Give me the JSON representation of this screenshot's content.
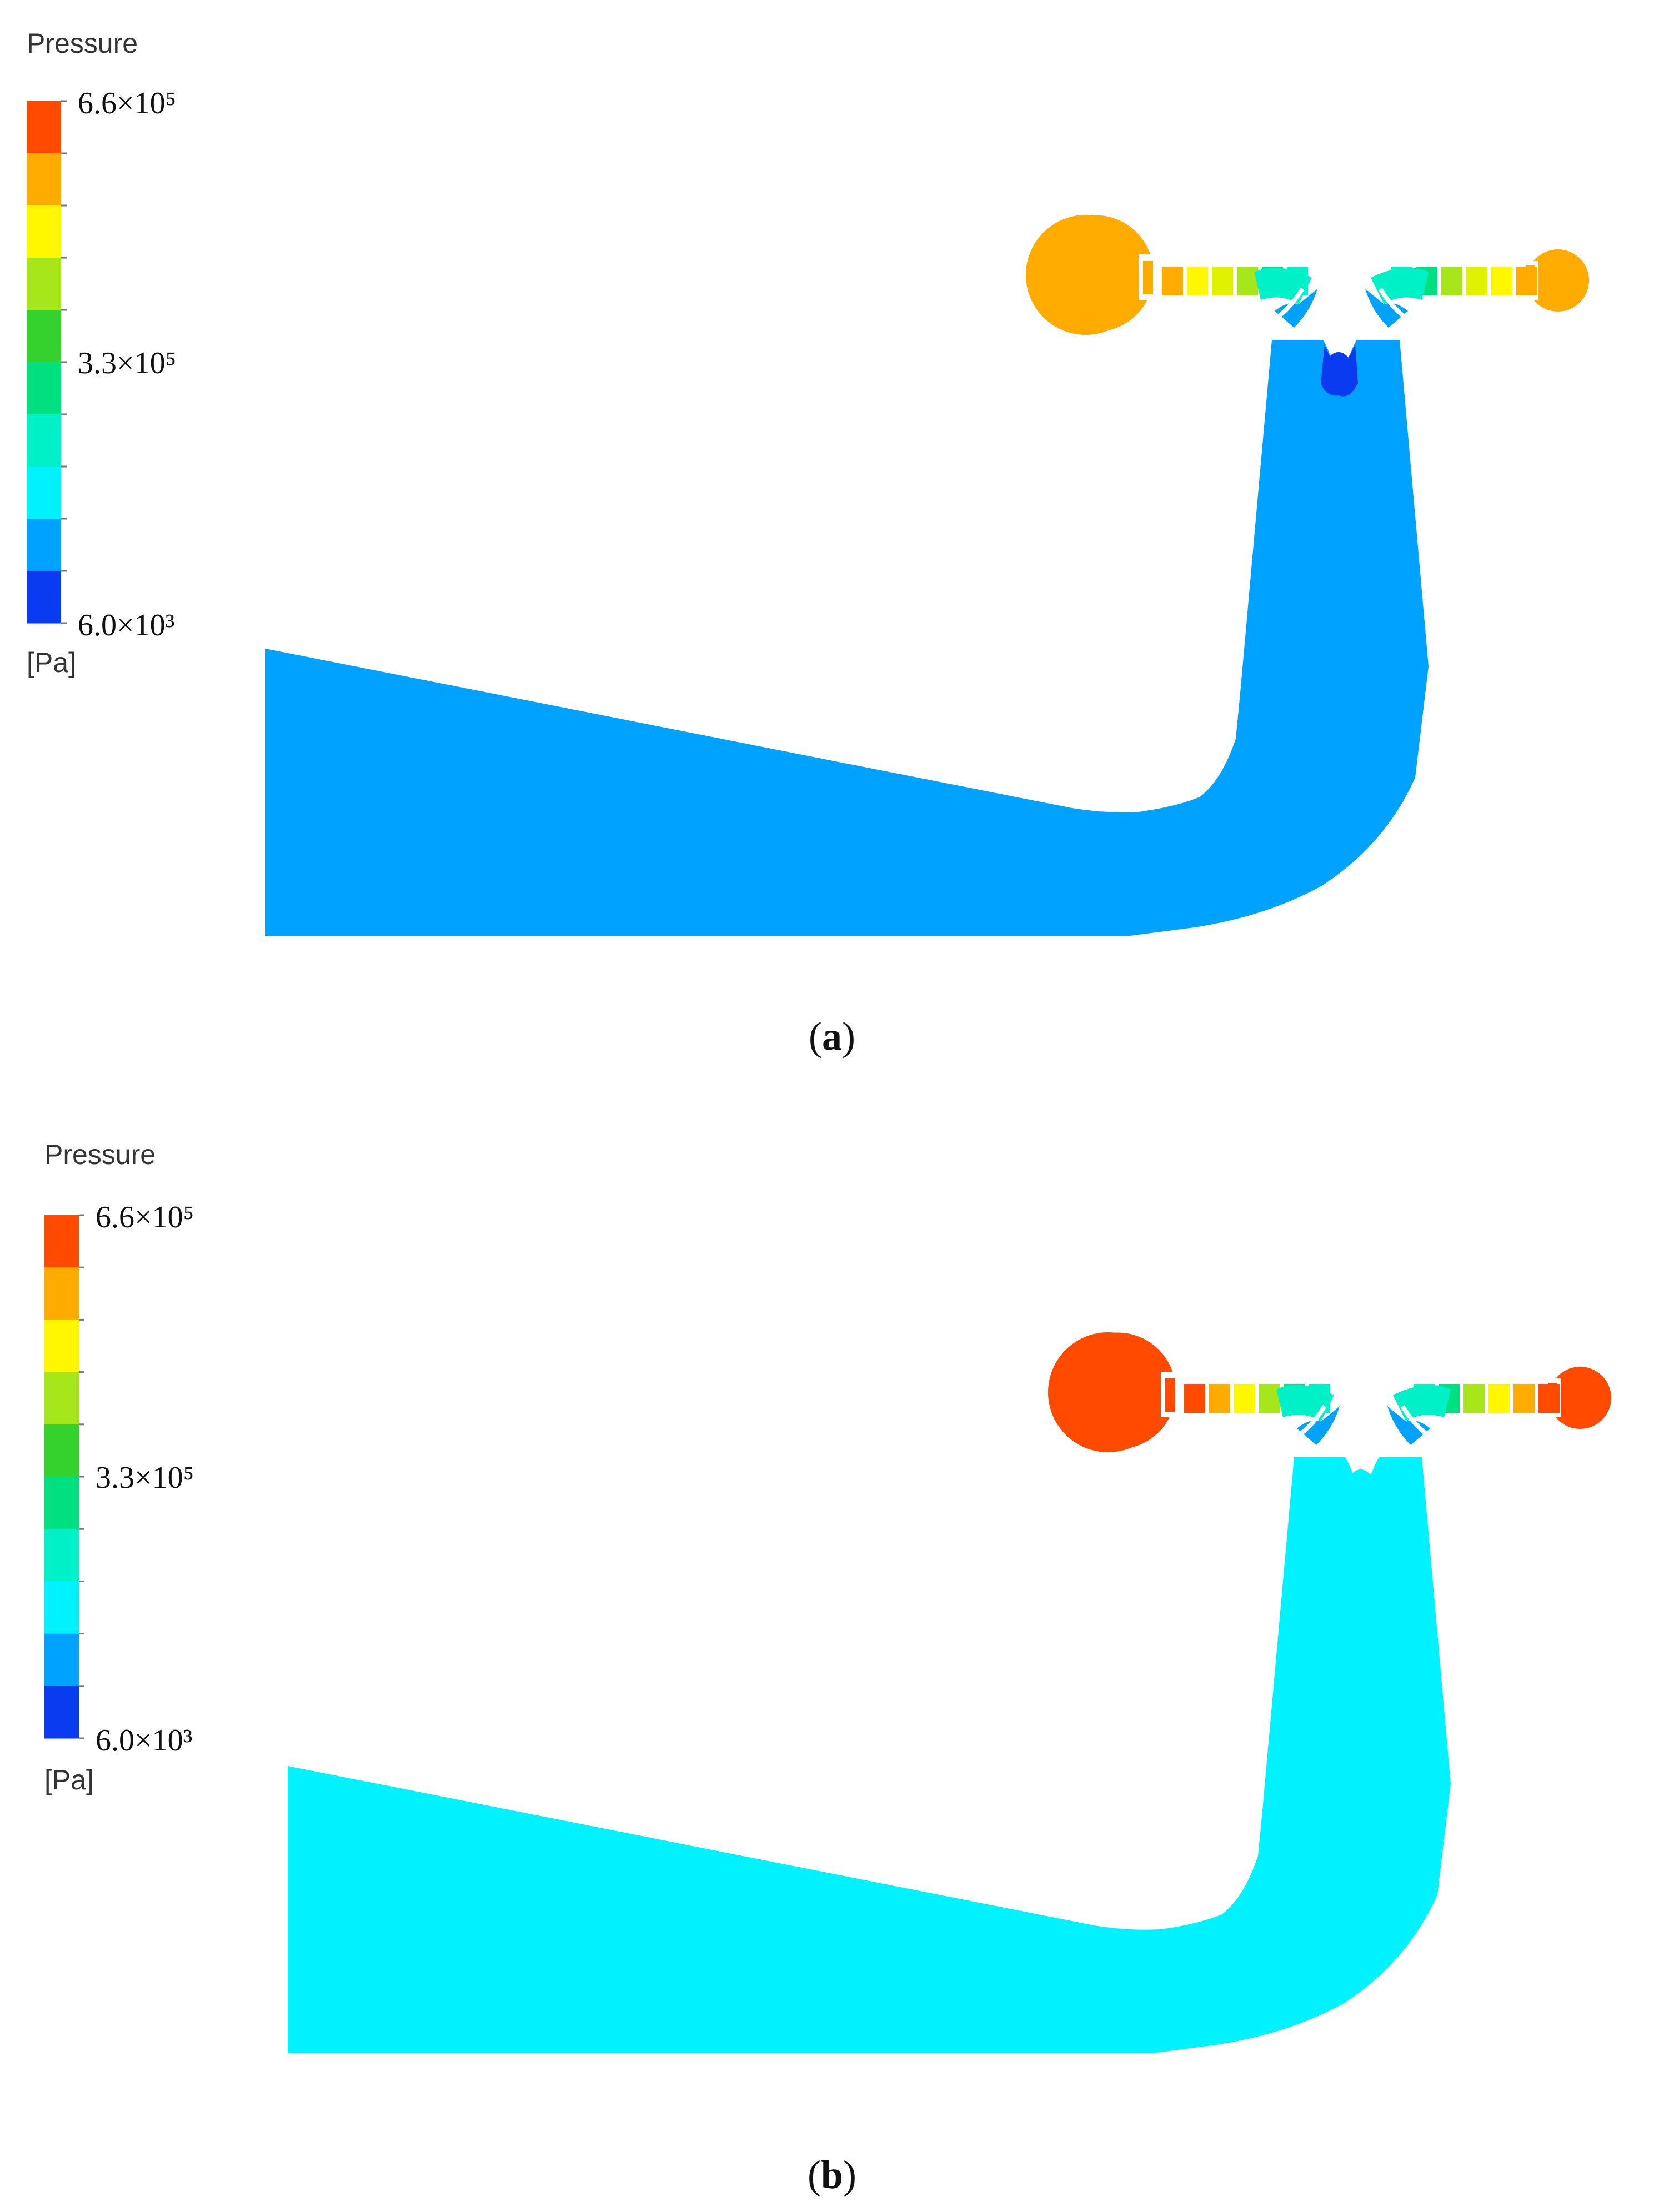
{
  "palette": [
    "#0a3bf0",
    "#00a2ff",
    "#00f2ff",
    "#00f0c8",
    "#00e080",
    "#35d22d",
    "#a8e61c",
    "#fff700",
    "#ffab00",
    "#ff4a00"
  ],
  "panels": [
    {
      "id": "a",
      "caption_open": "(",
      "caption_letter": "a",
      "caption_close": ")",
      "legend": {
        "title": "Pressure",
        "max_label": "6.6×10⁵",
        "mid_label": "3.3×10⁵",
        "min_label": "6.0×10³",
        "unit": "[Pa]"
      },
      "colors": {
        "left_chamber": "#ffab00",
        "right_chamber": "#ffab00",
        "channel": [
          "#ffab00",
          "#fff700",
          "#e0f200",
          "#a8e61c",
          "#00e080",
          "#00f0c8"
        ],
        "channel_right": [
          "#00f0c8",
          "#00e080",
          "#a8e61c",
          "#e0f200",
          "#fff700",
          "#ffab00"
        ],
        "throat": "#0a3bf0",
        "body": "#00a2ff"
      }
    },
    {
      "id": "b",
      "caption_open": "(",
      "caption_letter": "b",
      "caption_close": ")",
      "legend": {
        "title": "Pressure",
        "max_label": "6.6×10⁵",
        "mid_label": "3.3×10⁵",
        "min_label": "6.0×10³",
        "unit": "[Pa]"
      },
      "colors": {
        "left_chamber": "#ff4a00",
        "right_chamber": "#ff4a00",
        "channel": [
          "#ff4a00",
          "#ffab00",
          "#fff700",
          "#a8e61c",
          "#00e080",
          "#00f0c8"
        ],
        "channel_right": [
          "#00f0c8",
          "#00e080",
          "#a8e61c",
          "#fff700",
          "#ffab00",
          "#ff4a00"
        ],
        "throat": "#00f2ff",
        "body": "#00f2ff"
      }
    }
  ]
}
